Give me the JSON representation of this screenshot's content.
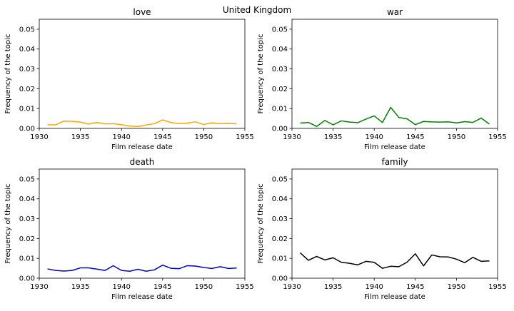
{
  "figure": {
    "title": "United Kingdom"
  },
  "chart_data": [
    {
      "type": "line",
      "title": "love",
      "xlabel": "Film release date",
      "ylabel": "Frequency of the topic",
      "xlim": [
        1930,
        1955
      ],
      "ylim": [
        0,
        0.055
      ],
      "xticks": [
        "1930",
        "1935",
        "1940",
        "1945",
        "1950",
        "1955"
      ],
      "yticks": [
        "0.00",
        "0.01",
        "0.02",
        "0.03",
        "0.04",
        "0.05"
      ],
      "series": [
        {
          "color": "#ffa500",
          "x": [
            1931,
            1932,
            1933,
            1934,
            1935,
            1936,
            1937,
            1938,
            1939,
            1940,
            1941,
            1942,
            1943,
            1944,
            1945,
            1946,
            1947,
            1948,
            1949,
            1950,
            1951,
            1952,
            1953,
            1954
          ],
          "y": [
            0.0018,
            0.0018,
            0.0037,
            0.0036,
            0.0032,
            0.0022,
            0.003,
            0.0023,
            0.0024,
            0.0019,
            0.0012,
            0.001,
            0.0017,
            0.0024,
            0.0043,
            0.003,
            0.0024,
            0.0027,
            0.0033,
            0.002,
            0.0028,
            0.0024,
            0.0025,
            0.0023
          ]
        }
      ]
    },
    {
      "type": "line",
      "title": "war",
      "xlabel": "Film release date",
      "ylabel": "Frequency of the topic",
      "xlim": [
        1930,
        1955
      ],
      "ylim": [
        0,
        0.055
      ],
      "xticks": [
        "1930",
        "1935",
        "1940",
        "1945",
        "1950",
        "1955"
      ],
      "yticks": [
        "0.00",
        "0.01",
        "0.02",
        "0.03",
        "0.04",
        "0.05"
      ],
      "series": [
        {
          "color": "#008000",
          "x": [
            1931,
            1932,
            1933,
            1934,
            1935,
            1936,
            1937,
            1938,
            1939,
            1940,
            1941,
            1942,
            1943,
            1944,
            1945,
            1946,
            1947,
            1948,
            1949,
            1950,
            1951,
            1952,
            1953,
            1954
          ],
          "y": [
            0.0027,
            0.003,
            0.001,
            0.004,
            0.0018,
            0.0038,
            0.0032,
            0.0029,
            0.0047,
            0.0063,
            0.003,
            0.0106,
            0.0055,
            0.0048,
            0.0019,
            0.0035,
            0.0033,
            0.0032,
            0.0033,
            0.0028,
            0.0034,
            0.003,
            0.0052,
            0.0022
          ]
        }
      ]
    },
    {
      "type": "line",
      "title": "death",
      "xlabel": "Film release date",
      "ylabel": "Frequency of the topic",
      "xlim": [
        1930,
        1955
      ],
      "ylim": [
        0,
        0.055
      ],
      "xticks": [
        "1930",
        "1935",
        "1940",
        "1945",
        "1950",
        "1955"
      ],
      "yticks": [
        "0.00",
        "0.01",
        "0.02",
        "0.03",
        "0.04",
        "0.05"
      ],
      "series": [
        {
          "color": "#0000cd",
          "x": [
            1931,
            1932,
            1933,
            1934,
            1935,
            1936,
            1937,
            1938,
            1939,
            1940,
            1941,
            1942,
            1943,
            1944,
            1945,
            1946,
            1947,
            1948,
            1949,
            1950,
            1951,
            1952,
            1953,
            1954
          ],
          "y": [
            0.0047,
            0.0039,
            0.0036,
            0.0039,
            0.0052,
            0.0052,
            0.0046,
            0.0039,
            0.0063,
            0.0039,
            0.0035,
            0.0045,
            0.0035,
            0.0042,
            0.0066,
            0.005,
            0.0048,
            0.0063,
            0.0061,
            0.0054,
            0.0049,
            0.0058,
            0.0049,
            0.0051
          ]
        }
      ]
    },
    {
      "type": "line",
      "title": "family",
      "xlabel": "Film release date",
      "ylabel": "Frequency of the topic",
      "xlim": [
        1930,
        1955
      ],
      "ylim": [
        0,
        0.055
      ],
      "xticks": [
        "1930",
        "1935",
        "1940",
        "1945",
        "1950",
        "1955"
      ],
      "yticks": [
        "0.00",
        "0.01",
        "0.02",
        "0.03",
        "0.04",
        "0.05"
      ],
      "series": [
        {
          "color": "#000000",
          "x": [
            1931,
            1932,
            1933,
            1934,
            1935,
            1936,
            1937,
            1938,
            1939,
            1940,
            1941,
            1942,
            1943,
            1944,
            1945,
            1946,
            1947,
            1948,
            1949,
            1950,
            1951,
            1952,
            1953,
            1954
          ],
          "y": [
            0.0128,
            0.009,
            0.011,
            0.0092,
            0.0103,
            0.008,
            0.0075,
            0.0067,
            0.0085,
            0.008,
            0.005,
            0.006,
            0.0058,
            0.0081,
            0.0123,
            0.0062,
            0.0117,
            0.0108,
            0.0107,
            0.0096,
            0.0078,
            0.0105,
            0.0085,
            0.0087
          ]
        }
      ]
    }
  ]
}
